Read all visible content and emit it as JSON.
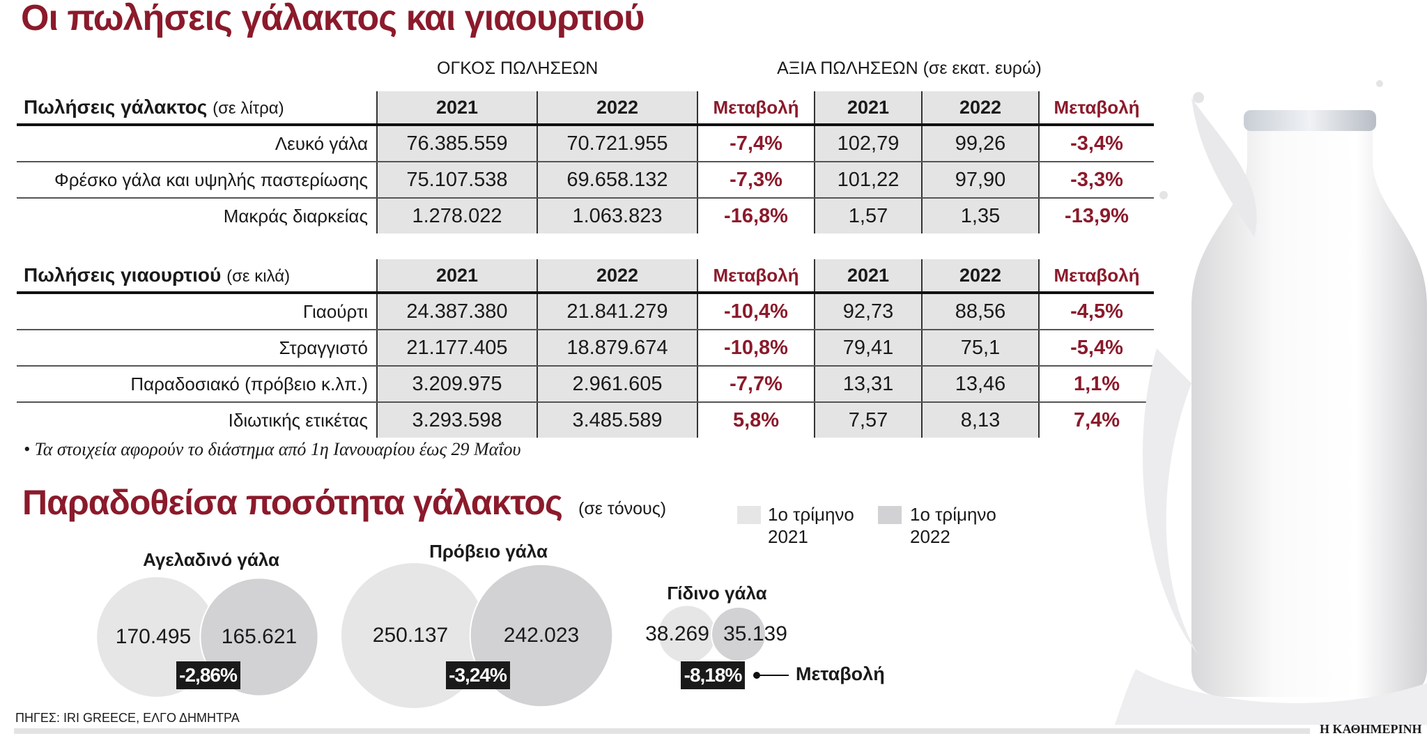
{
  "title": "Οι πωλήσεις γάλακτος και γιαουρτιού",
  "group_headers": {
    "volume": "ΟΓΚΟΣ ΠΩΛΗΣΕΩΝ",
    "value": "ΑΞΙΑ ΠΩΛΗΣΕΩΝ (σε εκατ. ευρώ)"
  },
  "chart_data": [
    {
      "type": "table",
      "title": "Πωλήσεις γάλακτος",
      "unit": "(σε λίτρα)",
      "columns": [
        "2021",
        "2022",
        "Μεταβολή",
        "2021",
        "2022",
        "Μεταβολή"
      ],
      "rows": [
        {
          "label": "Λευκό γάλα",
          "values": [
            "76.385.559",
            "70.721.955",
            "-7,4%",
            "102,79",
            "99,26",
            "-3,4%"
          ]
        },
        {
          "label": "Φρέσκο γάλα και υψηλής παστερίωσης",
          "values": [
            "75.107.538",
            "69.658.132",
            "-7,3%",
            "101,22",
            "97,90",
            "-3,3%"
          ]
        },
        {
          "label": "Μακράς διαρκείας",
          "values": [
            "1.278.022",
            "1.063.823",
            "-16,8%",
            "1,57",
            "1,35",
            "-13,9%"
          ]
        }
      ]
    },
    {
      "type": "table",
      "title": "Πωλήσεις γιαουρτιού",
      "unit": "(σε κιλά)",
      "columns": [
        "2021",
        "2022",
        "Μεταβολή",
        "2021",
        "2022",
        "Μεταβολή"
      ],
      "rows": [
        {
          "label": "Γιαούρτι",
          "values": [
            "24.387.380",
            "21.841.279",
            "-10,4%",
            "92,73",
            "88,56",
            "-4,5%"
          ]
        },
        {
          "label": "Στραγγιστό",
          "values": [
            "21.177.405",
            "18.879.674",
            "-10,8%",
            "79,41",
            "75,1",
            "-5,4%"
          ]
        },
        {
          "label": "Παραδοσιακό (πρόβειο κ.λπ.)",
          "values": [
            "3.209.975",
            "2.961.605",
            "-7,7%",
            "13,31",
            "13,46",
            "1,1%"
          ]
        },
        {
          "label": "Ιδιωτικής ετικέτας",
          "values": [
            "3.293.598",
            "3.485.589",
            "5,8%",
            "7,57",
            "8,13",
            "7,4%"
          ]
        }
      ]
    },
    {
      "type": "bubble",
      "title": "Παραδοθείσα ποσότητα γάλακτος",
      "unit": "(σε τόνους)",
      "legend": [
        {
          "label": "1ο τρίμηνο 2021",
          "line1": "1ο τρίμηνο",
          "line2": "2021",
          "color": "#e6e6e7"
        },
        {
          "label": "1ο τρίμηνο 2022",
          "line1": "1ο τρίμηνο",
          "line2": "2022",
          "color": "#d2d2d4"
        }
      ],
      "groups": [
        {
          "label": "Αγελαδινό γάλα",
          "v2021": 170495,
          "v2022": 165621,
          "t2021": "170.495",
          "t2022": "165.621",
          "change": "-2,86%"
        },
        {
          "label": "Πρόβειο γάλα",
          "v2021": 250137,
          "v2022": 242023,
          "t2021": "250.137",
          "t2022": "242.023",
          "change": "-3,24%"
        },
        {
          "label": "Γίδινο γάλα",
          "v2021": 38269,
          "v2022": 35139,
          "t2021": "38.269",
          "t2022": "35.139",
          "change": "-8,18%"
        }
      ],
      "change_label": "Μεταβολή"
    }
  ],
  "note": "• Τα στοιχεία αφορούν το διάστημα από 1η Ιανουαρίου έως 29 Μαΐου",
  "sources": "ΠΗΓΕΣ: IRI GREECE, ΕΛΓΟ ΔΗΜΗΤΡΑ",
  "brand": "Η ΚΑΘΗΜΕΡΙΝΗ",
  "colors": {
    "accent": "#8b1a2b",
    "header_bg": "#e4e4e5",
    "bubble_2021": "#e6e6e7",
    "bubble_2022": "#d2d2d4"
  }
}
